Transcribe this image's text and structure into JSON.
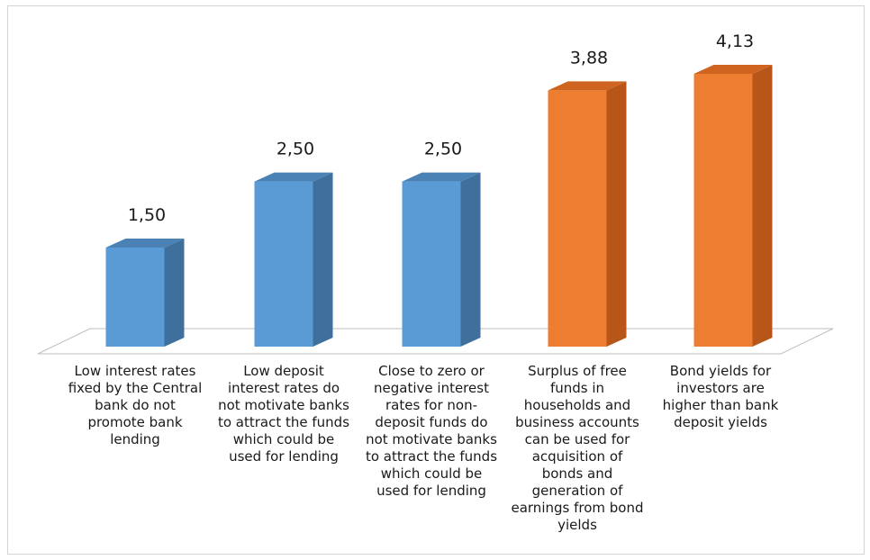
{
  "chart_data": {
    "type": "bar",
    "style": "3d-column",
    "categories": [
      "Low interest rates fixed by the Central bank do not promote bank lending",
      "Low deposit interest rates do not motivate banks to attract the funds which could be used for lending",
      "Close to zero or negative interest rates for non-deposit funds do not motivate banks to attract the funds which could be used for lending",
      "Surplus of free funds in households and business accounts can be used for acquisition of bonds and generation of earnings from bond yields",
      "Bond yields for investors are higher than bank deposit yields"
    ],
    "values": [
      1.5,
      2.5,
      2.5,
      3.88,
      4.13
    ],
    "data_labels": [
      "1,50",
      "2,50",
      "2,50",
      "3,88",
      "4,13"
    ],
    "bar_colors": [
      "#5b9bd5",
      "#5b9bd5",
      "#5b9bd5",
      "#ed7d31",
      "#ed7d31"
    ],
    "side_colors": [
      "#3f6f9c",
      "#3f6f9c",
      "#3f6f9c",
      "#b8561a",
      "#b8561a"
    ],
    "top_colors": [
      "#4a82b6",
      "#4a82b6",
      "#4a82b6",
      "#cf6420",
      "#cf6420"
    ],
    "title": "",
    "xlabel": "",
    "ylabel": "",
    "ylim": [
      0,
      4.13
    ],
    "grid": false,
    "legend": "none"
  }
}
